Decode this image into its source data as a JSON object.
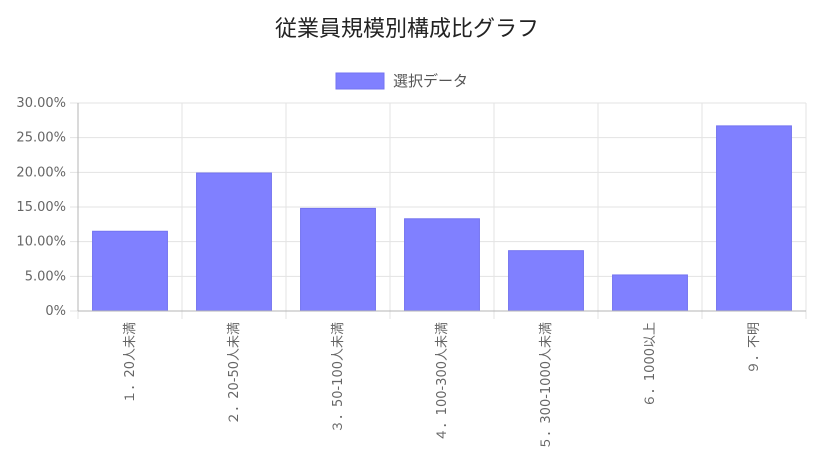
{
  "chart_data": {
    "type": "bar",
    "title": "従業員規模別構成比グラフ",
    "xlabel": "",
    "ylabel": "",
    "categories": [
      "１．20人未満",
      "２．20-50人未満",
      "３．50-100人未満",
      "４．100-300人未満",
      "５．300-1000人未満",
      "６．1000以上",
      "９．不明"
    ],
    "series": [
      {
        "name": "選択データ",
        "values": [
          11.5,
          19.9,
          14.8,
          13.3,
          8.7,
          5.2,
          26.7
        ]
      }
    ],
    "ylim": [
      0,
      30
    ],
    "yticks": [
      "0%",
      "5.00%",
      "10.00%",
      "15.00%",
      "20.00%",
      "25.00%",
      "30.00%"
    ],
    "grid": true,
    "legend_position": "top",
    "colors": {
      "bar_fill": "#8080ff",
      "bar_stroke": "#7373f0"
    }
  }
}
